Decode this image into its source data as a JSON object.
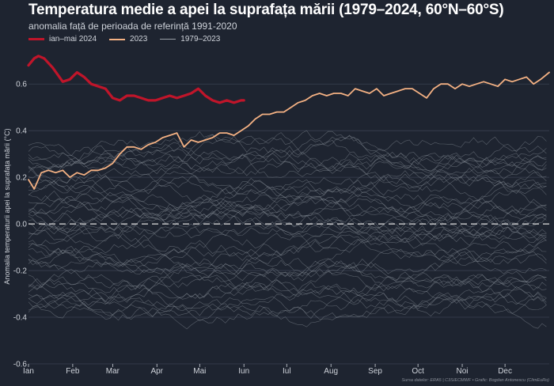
{
  "title": "Temperatura medie a apei la suprafața mării (1979–2024, 60°N–60°S)",
  "subtitle": "anomalia față de perioada de referință 1991-2020",
  "legend": [
    {
      "label": "ian–mai 2024",
      "color": "#c0152a"
    },
    {
      "label": "2023",
      "color": "#f4b183"
    },
    {
      "label": "1979–2023",
      "color": "#9aa0a8"
    }
  ],
  "footer": "Sursa datelor: ERA5 | C3S/ECMWF • Grafic: Bogdan Antonescu (ClimEuRo)",
  "chart_data": {
    "type": "line",
    "ylabel": "Anomalia temperaturii apei la suprafața mării (°C)",
    "ylim": [
      -0.6,
      0.75
    ],
    "yticks": [
      -0.6,
      -0.4,
      -0.2,
      0.0,
      0.2,
      0.4,
      0.6
    ],
    "ytick_labels": [
      "-0.6",
      "-0.4",
      "-0.2",
      "0.0",
      "0.2",
      "0.4",
      "0.6"
    ],
    "x_unit": "day of year",
    "xlim": [
      1,
      366
    ],
    "xticks": [
      1,
      32,
      60,
      91,
      121,
      152,
      182,
      213,
      244,
      274,
      305,
      335
    ],
    "xtick_labels": [
      "Ian",
      "Feb",
      "Mar",
      "Apr",
      "Mai",
      "Iun",
      "Iul",
      "Aug",
      "Sep",
      "Oct",
      "Noi",
      "Dec"
    ],
    "grid": true,
    "zero_line": "dashed",
    "legend_position": "top-left",
    "series": [
      {
        "name": "ian–mai 2024",
        "color": "#c0152a",
        "x": [
          1,
          5,
          8,
          12,
          18,
          25,
          30,
          35,
          40,
          45,
          50,
          55,
          60,
          65,
          70,
          75,
          80,
          85,
          90,
          95,
          100,
          105,
          110,
          115,
          120,
          125,
          130,
          135,
          140,
          145,
          150,
          152
        ],
        "y": [
          0.68,
          0.71,
          0.72,
          0.71,
          0.67,
          0.61,
          0.62,
          0.65,
          0.63,
          0.6,
          0.59,
          0.58,
          0.54,
          0.53,
          0.55,
          0.55,
          0.54,
          0.53,
          0.53,
          0.54,
          0.55,
          0.54,
          0.55,
          0.56,
          0.58,
          0.55,
          0.53,
          0.52,
          0.53,
          0.52,
          0.53,
          0.53
        ]
      },
      {
        "name": "2023",
        "color": "#f4b183",
        "x": [
          1,
          5,
          10,
          15,
          20,
          25,
          30,
          35,
          40,
          45,
          50,
          55,
          60,
          65,
          70,
          75,
          80,
          85,
          90,
          95,
          100,
          105,
          110,
          115,
          120,
          125,
          130,
          135,
          140,
          145,
          150,
          155,
          160,
          165,
          170,
          175,
          180,
          185,
          190,
          195,
          200,
          205,
          210,
          215,
          220,
          225,
          230,
          235,
          240,
          245,
          250,
          255,
          260,
          265,
          270,
          275,
          280,
          285,
          290,
          295,
          300,
          305,
          310,
          315,
          320,
          325,
          330,
          335,
          340,
          345,
          350,
          355,
          360,
          366
        ],
        "y": [
          0.19,
          0.15,
          0.22,
          0.23,
          0.22,
          0.23,
          0.2,
          0.22,
          0.21,
          0.23,
          0.23,
          0.24,
          0.26,
          0.3,
          0.33,
          0.33,
          0.32,
          0.34,
          0.35,
          0.37,
          0.38,
          0.39,
          0.33,
          0.36,
          0.35,
          0.36,
          0.37,
          0.39,
          0.39,
          0.38,
          0.4,
          0.42,
          0.45,
          0.47,
          0.47,
          0.48,
          0.48,
          0.5,
          0.52,
          0.53,
          0.55,
          0.56,
          0.55,
          0.56,
          0.56,
          0.55,
          0.58,
          0.57,
          0.56,
          0.58,
          0.55,
          0.56,
          0.57,
          0.58,
          0.58,
          0.56,
          0.54,
          0.58,
          0.6,
          0.6,
          0.58,
          0.6,
          0.59,
          0.6,
          0.61,
          0.6,
          0.59,
          0.62,
          0.61,
          0.62,
          0.63,
          0.6,
          0.62,
          0.65
        ]
      }
    ]
  }
}
